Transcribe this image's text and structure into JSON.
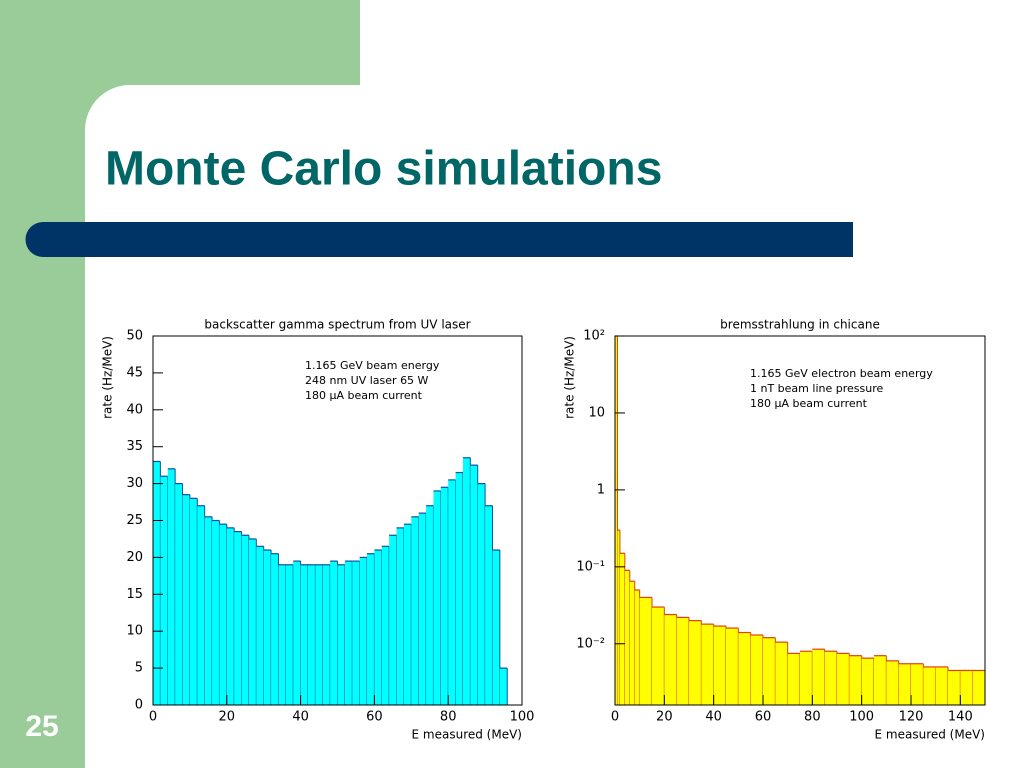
{
  "title": "Monte Carlo simulations",
  "slide_number": "25",
  "chart_data": [
    {
      "type": "histogram",
      "title": "backscatter gamma spectrum from UV laser",
      "xlabel": "E measured (MeV)",
      "ylabel": "rate (Hz/MeV)",
      "annotations": [
        "1.165 GeV beam energy",
        "248 nm UV laser 65 W",
        "180 μA beam current"
      ],
      "bins": [
        0,
        2,
        4,
        6,
        8,
        10,
        12,
        14,
        16,
        18,
        20,
        22,
        24,
        26,
        28,
        30,
        32,
        34,
        36,
        38,
        40,
        42,
        44,
        46,
        48,
        50,
        52,
        54,
        56,
        58,
        60,
        62,
        64,
        66,
        68,
        70,
        72,
        74,
        76,
        78,
        80,
        82,
        84,
        86,
        88,
        90,
        92,
        94,
        96
      ],
      "values": [
        33,
        31,
        32,
        30,
        28.5,
        28,
        27,
        25.5,
        25,
        24.5,
        24,
        23.5,
        23,
        22.5,
        21.5,
        21,
        20.5,
        19,
        19,
        19.5,
        19,
        19,
        19,
        19,
        19.5,
        19,
        19.5,
        19.5,
        20,
        20.5,
        21,
        21.5,
        23,
        24,
        24.5,
        25.5,
        26,
        27,
        29,
        29.5,
        30.5,
        31.5,
        33.5,
        32.5,
        30,
        27,
        21,
        5
      ],
      "color": "#00ffff",
      "edgecolor": "#1050a0",
      "xlim": [
        0,
        100
      ],
      "ylim": [
        0,
        50
      ],
      "xticks": [
        0,
        20,
        40,
        60,
        80,
        100
      ],
      "yticks": [
        0,
        5,
        10,
        15,
        20,
        25,
        30,
        35,
        40,
        45,
        50
      ],
      "log_y": false
    },
    {
      "type": "histogram",
      "title": "bremsstrahlung in chicane",
      "xlabel": "E measured (MeV)",
      "ylabel": "rate (Hz/MeV)",
      "annotations": [
        "1.165 GeV electron beam energy",
        "1 nT beam line pressure",
        "180 μA beam current"
      ],
      "bins": [
        0,
        1,
        2,
        4,
        6,
        8,
        10,
        15,
        20,
        25,
        30,
        35,
        40,
        45,
        50,
        55,
        60,
        65,
        70,
        75,
        80,
        85,
        90,
        95,
        100,
        105,
        110,
        115,
        120,
        125,
        130,
        135,
        140,
        145,
        150
      ],
      "values": [
        100,
        0.3,
        0.15,
        0.09,
        0.065,
        0.05,
        0.04,
        0.03,
        0.024,
        0.022,
        0.02,
        0.018,
        0.017,
        0.016,
        0.014,
        0.013,
        0.012,
        0.0105,
        0.0075,
        0.008,
        0.0085,
        0.008,
        0.0075,
        0.007,
        0.0065,
        0.007,
        0.006,
        0.0055,
        0.0055,
        0.005,
        0.005,
        0.0045,
        0.0045,
        0.0045
      ],
      "color": "#ffff00",
      "edgecolor": "#e04010",
      "xlim": [
        0,
        150
      ],
      "ylim": [
        0.0016,
        100
      ],
      "xticks": [
        0,
        20,
        40,
        60,
        80,
        100,
        120,
        140
      ],
      "yticks": [
        {
          "value": 0.01,
          "label": "10⁻²"
        },
        {
          "value": 0.1,
          "label": "10⁻¹"
        },
        1,
        10,
        {
          "value": 100,
          "label": "10²"
        }
      ],
      "log_y": true
    }
  ]
}
